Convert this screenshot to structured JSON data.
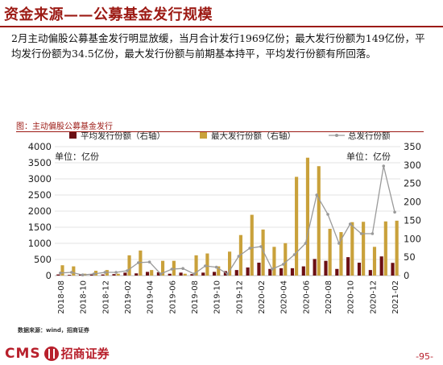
{
  "title": "资金来源——公募基金发行规模",
  "summary": "2月主动偏股公募基金发行明显放缓，当月合计发行1969亿份；最大发行份额为149亿份，平均发行份额为34.5亿份，最大发行份额与前期基本持平，平均发行份额有所回落。",
  "figure_caption": "图：主动偏股公募基金发行",
  "source": "数据来源：wind，招商证券",
  "logo_text": "招商证券",
  "logo_prefix": "CMS",
  "page_number": "-95-",
  "colors": {
    "accent": "#9c1a14",
    "avg_bar": "#6b0f14",
    "max_bar": "#c9a13b",
    "line": "#9a9a9a"
  },
  "icons": {
    "logo": "cms-logo-icon"
  },
  "chart_data": {
    "type": "bar",
    "left_unit": "单位：亿份",
    "right_unit": "单位：亿份",
    "categories": [
      "2018-08",
      "2018-09",
      "2018-10",
      "2018-11",
      "2018-12",
      "2019-01",
      "2019-02",
      "2019-03",
      "2019-04",
      "2019-05",
      "2019-06",
      "2019-07",
      "2019-08",
      "2019-09",
      "2019-10",
      "2019-11",
      "2019-12",
      "2020-01",
      "2020-02",
      "2020-03",
      "2020-04",
      "2020-05",
      "2020-06",
      "2020-07",
      "2020-08",
      "2020-09",
      "2020-10",
      "2020-11",
      "2020-12",
      "2021-01",
      "2021-02"
    ],
    "x_tick_labels": [
      "2018-08",
      "2018-10",
      "2018-12",
      "2019-02",
      "2019-04",
      "2019-06",
      "2019-08",
      "2019-10",
      "2019-12",
      "2020-02",
      "2020-04",
      "2020-06",
      "2020-08",
      "2020-10",
      "2020-12",
      "2021-02"
    ],
    "ylim_left": [
      0,
      4000
    ],
    "ylim_right": [
      0,
      350
    ],
    "yticks_left": [
      "0",
      "500",
      "1000",
      "1500",
      "2000",
      "2500",
      "3000",
      "3500",
      "4000"
    ],
    "yticks_right": [
      "0",
      "50",
      "100",
      "150",
      "200",
      "250",
      "300",
      "350"
    ],
    "series": [
      {
        "name": "平均发行份额（右轴）",
        "axis": "right",
        "kind": "bar",
        "values": [
          3,
          2,
          3,
          3,
          3,
          4,
          8,
          6,
          10,
          9,
          5,
          8,
          4,
          8,
          10,
          12,
          15,
          22,
          35,
          18,
          20,
          20,
          25,
          45,
          40,
          18,
          50,
          35,
          15,
          52,
          34.5
        ]
      },
      {
        "name": "最大发行份额（右轴）",
        "axis": "right",
        "kind": "bar",
        "values": [
          28,
          25,
          5,
          13,
          15,
          5,
          55,
          68,
          15,
          40,
          40,
          5,
          55,
          60,
          25,
          65,
          110,
          165,
          125,
          78,
          88,
          268,
          320,
          297,
          127,
          118,
          145,
          146,
          78,
          147,
          149
        ]
      },
      {
        "name": "总发行份额",
        "axis": "left",
        "kind": "line",
        "values": [
          80,
          100,
          20,
          50,
          100,
          100,
          150,
          400,
          420,
          50,
          200,
          220,
          50,
          300,
          260,
          50,
          600,
          850,
          900,
          200,
          350,
          650,
          1000,
          2500,
          1900,
          1000,
          1600,
          1300,
          1300,
          3400,
          1969
        ]
      }
    ]
  }
}
